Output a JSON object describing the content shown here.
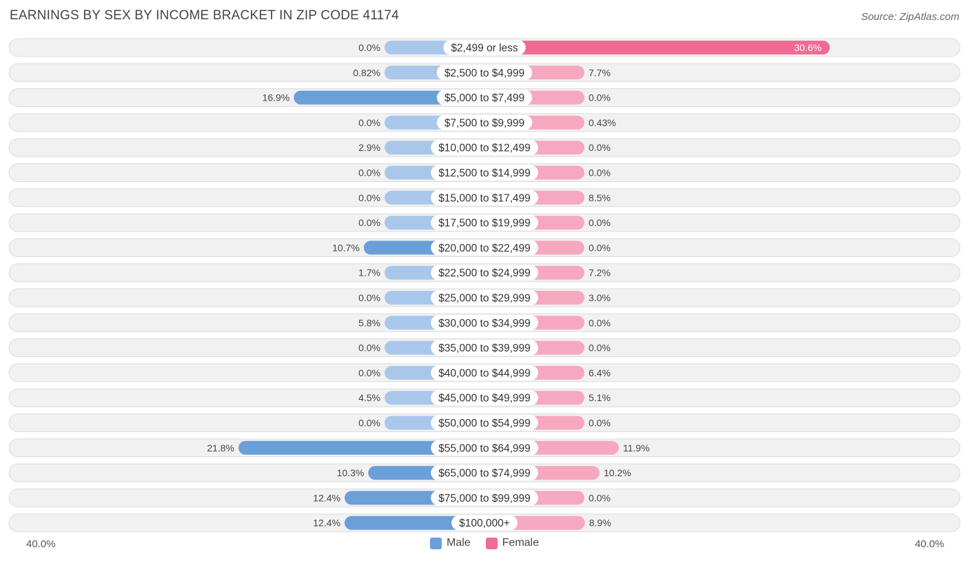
{
  "title": "EARNINGS BY SEX BY INCOME BRACKET IN ZIP CODE 41174",
  "source": "Source: ZipAtlas.com",
  "colors": {
    "male_strong": "#6a9fd8",
    "male_light": "#a9c7ea",
    "female_strong": "#f06b93",
    "female_light": "#f6a8c0",
    "row_bg": "#f1f1f1",
    "row_border": "#dcdcdc"
  },
  "legend": {
    "male": "Male",
    "female": "Female"
  },
  "axis": {
    "left_label": "40.0%",
    "right_label": "40.0%"
  },
  "chart_data": {
    "type": "bar",
    "orientation": "horizontal-diverging",
    "title": "EARNINGS BY SEX BY INCOME BRACKET IN ZIP CODE 41174",
    "xlim": [
      -40,
      40
    ],
    "categories": [
      "$2,499 or less",
      "$2,500 to $4,999",
      "$5,000 to $7,499",
      "$7,500 to $9,999",
      "$10,000 to $12,499",
      "$12,500 to $14,999",
      "$15,000 to $17,499",
      "$17,500 to $19,999",
      "$20,000 to $22,499",
      "$22,500 to $24,999",
      "$25,000 to $29,999",
      "$30,000 to $34,999",
      "$35,000 to $39,999",
      "$40,000 to $44,999",
      "$45,000 to $49,999",
      "$50,000 to $54,999",
      "$55,000 to $64,999",
      "$65,000 to $74,999",
      "$75,000 to $99,999",
      "$100,000+"
    ],
    "series": [
      {
        "name": "Male",
        "values": [
          0.0,
          0.82,
          16.9,
          0.0,
          2.9,
          0.0,
          0.0,
          0.0,
          10.7,
          1.7,
          0.0,
          5.8,
          0.0,
          0.0,
          4.5,
          0.0,
          21.8,
          10.3,
          12.4,
          12.4
        ],
        "labels": [
          "0.0%",
          "0.82%",
          "16.9%",
          "0.0%",
          "2.9%",
          "0.0%",
          "0.0%",
          "0.0%",
          "10.7%",
          "1.7%",
          "0.0%",
          "5.8%",
          "0.0%",
          "0.0%",
          "4.5%",
          "0.0%",
          "21.8%",
          "10.3%",
          "12.4%",
          "12.4%"
        ]
      },
      {
        "name": "Female",
        "values": [
          30.6,
          7.7,
          0.0,
          0.43,
          0.0,
          0.0,
          8.5,
          0.0,
          0.0,
          7.2,
          3.0,
          0.0,
          0.0,
          6.4,
          5.1,
          0.0,
          11.9,
          10.2,
          0.0,
          8.9
        ],
        "labels": [
          "30.6%",
          "7.7%",
          "0.0%",
          "0.43%",
          "0.0%",
          "0.0%",
          "8.5%",
          "0.0%",
          "0.0%",
          "7.2%",
          "3.0%",
          "0.0%",
          "0.0%",
          "6.4%",
          "5.1%",
          "0.0%",
          "11.9%",
          "10.2%",
          "0.0%",
          "8.9%"
        ]
      }
    ]
  }
}
